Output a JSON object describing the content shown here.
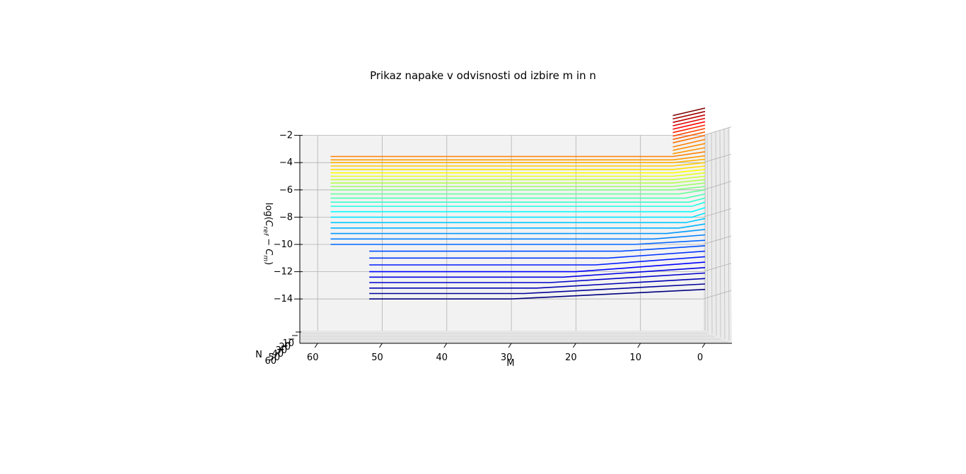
{
  "chart_data": {
    "type": "line",
    "projection": "3d-side-view",
    "title": "Prikaz napake v odvisnosti od izbire m in n",
    "xlabel": "M",
    "ylabel": "N",
    "zlabel": "log(C_ref − C_m)",
    "zlabel_parts": {
      "pre": "log(",
      "c1": "C",
      "sub1": "ref",
      "mid": " − ",
      "c2": "C",
      "sub2": "m",
      "post": ")"
    },
    "xlim": [
      -4,
      66
    ],
    "zlim": [
      -14.5,
      0
    ],
    "x_ticks": [
      "60",
      "50",
      "40",
      "30",
      "20",
      "10",
      "0"
    ],
    "x_tick_values": [
      60,
      50,
      40,
      30,
      20,
      10,
      0
    ],
    "y_ticks": [
      "10",
      "20",
      "30",
      "40",
      "50",
      "60"
    ],
    "z_ticks": [
      "−2",
      "−4",
      "−6",
      "−8",
      "−10",
      "−12",
      "−14"
    ],
    "z_tick_values": [
      -2,
      -4,
      -6,
      -8,
      -10,
      -12,
      -14
    ],
    "colormap": [
      "#00007f",
      "#0000ff",
      "#007fff",
      "#00ffff",
      "#7fff7f",
      "#ffff00",
      "#ff7f00",
      "#ff0000",
      "#7f0000"
    ],
    "grid": true,
    "curves": [
      {
        "name": "",
        "color": "#800000",
        "points": [
          [
            0,
            0.0
          ],
          [
            5,
            -0.55
          ]
        ]
      },
      {
        "name": "",
        "color": "#9f0000",
        "points": [
          [
            0,
            -0.25
          ],
          [
            5,
            -0.8
          ]
        ]
      },
      {
        "name": "",
        "color": "#bf0000",
        "points": [
          [
            0,
            -0.5
          ],
          [
            5,
            -1.05
          ]
        ]
      },
      {
        "name": "",
        "color": "#df0000",
        "points": [
          [
            0,
            -0.75
          ],
          [
            5,
            -1.3
          ]
        ]
      },
      {
        "name": "",
        "color": "#ff0000",
        "points": [
          [
            0,
            -1.0
          ],
          [
            5,
            -1.55
          ]
        ]
      },
      {
        "name": "",
        "color": "#ff2000",
        "points": [
          [
            0,
            -1.25
          ],
          [
            5,
            -1.8
          ]
        ]
      },
      {
        "name": "",
        "color": "#ff4000",
        "points": [
          [
            0,
            -1.5
          ],
          [
            5,
            -2.05
          ]
        ]
      },
      {
        "name": "",
        "color": "#ff5a00",
        "points": [
          [
            0,
            -1.75
          ],
          [
            5,
            -2.3
          ]
        ]
      },
      {
        "name": "",
        "color": "#ff7000",
        "points": [
          [
            0,
            -2.0
          ],
          [
            5,
            -2.55
          ]
        ]
      },
      {
        "name": "",
        "color": "#ff8000",
        "points": [
          [
            0,
            -2.3
          ],
          [
            5,
            -2.85
          ]
        ]
      },
      {
        "name": "",
        "color": "#ff8c00",
        "points": [
          [
            0,
            -2.6
          ],
          [
            5,
            -3.1
          ]
        ]
      },
      {
        "name": "",
        "color": "#ff9600",
        "points": [
          [
            0,
            -2.9
          ],
          [
            5,
            -3.35
          ]
        ]
      },
      {
        "name": "",
        "color": "#ff8000",
        "points": [
          [
            0,
            -3.2
          ],
          [
            5,
            -3.55
          ],
          [
            58,
            -3.55
          ]
        ]
      },
      {
        "name": "",
        "color": "#ff9a00",
        "points": [
          [
            0,
            -3.5
          ],
          [
            5,
            -3.8
          ],
          [
            58,
            -3.8
          ]
        ]
      },
      {
        "name": "",
        "color": "#ffb400",
        "points": [
          [
            0,
            -3.75
          ],
          [
            5,
            -4.0
          ],
          [
            58,
            -4.0
          ]
        ]
      },
      {
        "name": "",
        "color": "#ffcc00",
        "points": [
          [
            0,
            -4.0
          ],
          [
            5,
            -4.25
          ],
          [
            58,
            -4.25
          ]
        ]
      },
      {
        "name": "",
        "color": "#ffe000",
        "points": [
          [
            0,
            -4.25
          ],
          [
            5,
            -4.5
          ],
          [
            58,
            -4.5
          ]
        ]
      },
      {
        "name": "",
        "color": "#ffff00",
        "points": [
          [
            0,
            -4.5
          ],
          [
            5,
            -4.75
          ],
          [
            58,
            -4.75
          ]
        ]
      },
      {
        "name": "",
        "color": "#e6ff19",
        "points": [
          [
            0,
            -4.75
          ],
          [
            5,
            -5.0
          ],
          [
            58,
            -5.0
          ]
        ]
      },
      {
        "name": "",
        "color": "#ccff33",
        "points": [
          [
            0,
            -5.0
          ],
          [
            5,
            -5.25
          ],
          [
            58,
            -5.25
          ]
        ]
      },
      {
        "name": "",
        "color": "#b3ff4c",
        "points": [
          [
            0,
            -5.25
          ],
          [
            5,
            -5.5
          ],
          [
            58,
            -5.5
          ]
        ]
      },
      {
        "name": "",
        "color": "#99ff66",
        "points": [
          [
            0,
            -5.5
          ],
          [
            5,
            -5.75
          ],
          [
            58,
            -5.75
          ]
        ]
      },
      {
        "name": "",
        "color": "#7fff7f",
        "points": [
          [
            0,
            -5.75
          ],
          [
            5,
            -6.0
          ],
          [
            58,
            -6.0
          ]
        ]
      },
      {
        "name": "",
        "color": "#66ff99",
        "points": [
          [
            0,
            -6.0
          ],
          [
            4,
            -6.3
          ],
          [
            58,
            -6.3
          ]
        ]
      },
      {
        "name": "",
        "color": "#4cffb3",
        "points": [
          [
            0,
            -6.3
          ],
          [
            3,
            -6.6
          ],
          [
            58,
            -6.6
          ]
        ]
      },
      {
        "name": "",
        "color": "#33ffcc",
        "points": [
          [
            0,
            -6.6
          ],
          [
            2.5,
            -6.9
          ],
          [
            58,
            -6.9
          ]
        ]
      },
      {
        "name": "",
        "color": "#19ffe6",
        "points": [
          [
            0,
            -6.9
          ],
          [
            2,
            -7.2
          ],
          [
            58,
            -7.2
          ]
        ]
      },
      {
        "name": "",
        "color": "#00ffff",
        "points": [
          [
            0,
            -7.3
          ],
          [
            2,
            -7.6
          ],
          [
            58,
            -7.6
          ]
        ]
      },
      {
        "name": "",
        "color": "#00e6ff",
        "points": [
          [
            0,
            -7.7
          ],
          [
            2,
            -8.0
          ],
          [
            58,
            -8.0
          ]
        ]
      },
      {
        "name": "",
        "color": "#00ccff",
        "points": [
          [
            0,
            -8.1
          ],
          [
            3,
            -8.4
          ],
          [
            58,
            -8.4
          ]
        ]
      },
      {
        "name": "",
        "color": "#00b3ff",
        "points": [
          [
            0,
            -8.5
          ],
          [
            4,
            -8.8
          ],
          [
            58,
            -8.8
          ]
        ]
      },
      {
        "name": "",
        "color": "#0099ff",
        "points": [
          [
            0,
            -8.9
          ],
          [
            6,
            -9.2
          ],
          [
            58,
            -9.2
          ]
        ]
      },
      {
        "name": "",
        "color": "#0080ff",
        "points": [
          [
            0,
            -9.3
          ],
          [
            8,
            -9.6
          ],
          [
            58,
            -9.6
          ]
        ]
      },
      {
        "name": "",
        "color": "#0066ff",
        "points": [
          [
            0,
            -9.7
          ],
          [
            11,
            -10.0
          ],
          [
            58,
            -10.0
          ]
        ]
      },
      {
        "name": "",
        "color": "#004dff",
        "points": [
          [
            0,
            -10.1
          ],
          [
            13,
            -10.5
          ],
          [
            52,
            -10.5
          ]
        ]
      },
      {
        "name": "",
        "color": "#0033ff",
        "points": [
          [
            0,
            -10.5
          ],
          [
            15,
            -11.0
          ],
          [
            52,
            -11.0
          ]
        ]
      },
      {
        "name": "",
        "color": "#001aff",
        "points": [
          [
            0,
            -10.9
          ],
          [
            17,
            -11.5
          ],
          [
            52,
            -11.5
          ]
        ]
      },
      {
        "name": "",
        "color": "#0000ff",
        "points": [
          [
            0,
            -11.3
          ],
          [
            20,
            -12.0
          ],
          [
            52,
            -12.0
          ]
        ]
      },
      {
        "name": "",
        "color": "#0000e6",
        "points": [
          [
            0,
            -11.7
          ],
          [
            22,
            -12.4
          ],
          [
            52,
            -12.4
          ]
        ]
      },
      {
        "name": "",
        "color": "#0000cc",
        "points": [
          [
            0,
            -12.1
          ],
          [
            24,
            -12.8
          ],
          [
            52,
            -12.8
          ]
        ]
      },
      {
        "name": "",
        "color": "#0000b3",
        "points": [
          [
            0,
            -12.5
          ],
          [
            26,
            -13.2
          ],
          [
            52,
            -13.2
          ]
        ]
      },
      {
        "name": "",
        "color": "#000099",
        "points": [
          [
            0,
            -12.9
          ],
          [
            28,
            -13.6
          ],
          [
            52,
            -13.6
          ]
        ]
      },
      {
        "name": "",
        "color": "#00007f",
        "points": [
          [
            0,
            -13.3
          ],
          [
            30,
            -14.0
          ],
          [
            52,
            -14.0
          ]
        ]
      }
    ]
  }
}
